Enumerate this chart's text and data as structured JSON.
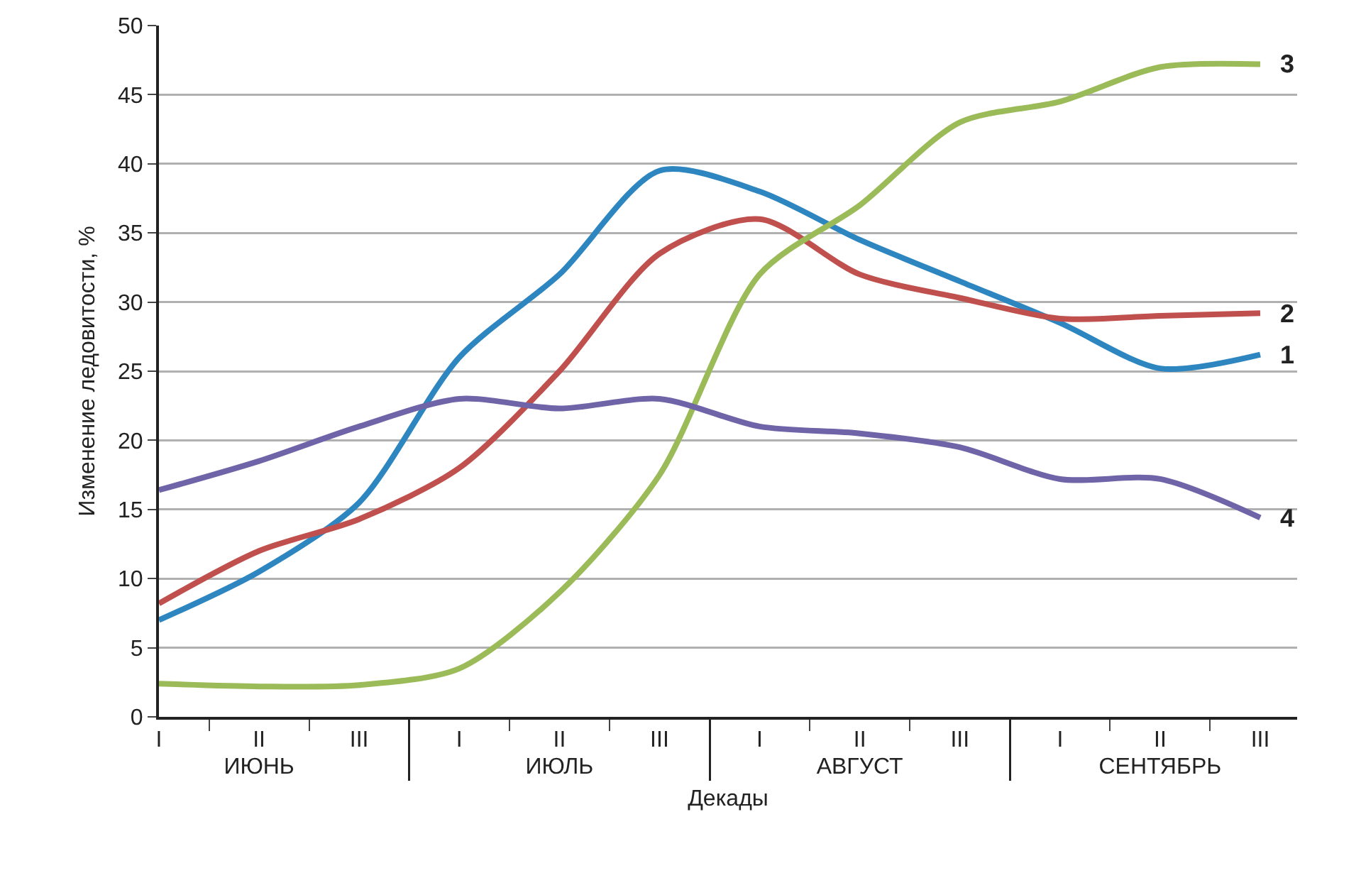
{
  "chart_data": {
    "type": "line",
    "xlabel": "Декады",
    "ylabel": "Изменение ледовитости, %",
    "categories": [
      "I",
      "II",
      "III",
      "I",
      "II",
      "III",
      "I",
      "II",
      "III",
      "I",
      "II",
      "III"
    ],
    "annotations": [
      "ИЮНЬ",
      "ИЮЛЬ",
      "АВГУСТ",
      "СЕНТЯБРЬ"
    ],
    "series": [
      {
        "name": "1",
        "color": "#2e86c1",
        "values": [
          7.0,
          10.5,
          15.5,
          26,
          32,
          39.5,
          38,
          34.5,
          31.5,
          28.5,
          25.2,
          26.2
        ]
      },
      {
        "name": "2",
        "color": "#c0504d",
        "values": [
          8.2,
          12,
          14.3,
          18,
          25,
          33.5,
          36,
          32,
          30.3,
          28.8,
          29,
          29.2
        ]
      },
      {
        "name": "3",
        "color": "#9bbb59",
        "values": [
          2.4,
          2.2,
          2.3,
          3.5,
          9,
          17.5,
          32,
          37,
          43,
          44.5,
          47,
          47.2
        ]
      },
      {
        "name": "4",
        "color": "#7064a8",
        "values": [
          16.4,
          18.5,
          21,
          23,
          22.3,
          23,
          21,
          20.5,
          19.5,
          17.2,
          17.2,
          14.4
        ]
      }
    ],
    "ylim": [
      0,
      50
    ],
    "yticks": [
      0,
      5,
      10,
      15,
      20,
      25,
      30,
      35,
      40,
      45,
      50
    ],
    "grid": "y",
    "legend": false,
    "marker": "none",
    "line_style": "solid"
  }
}
